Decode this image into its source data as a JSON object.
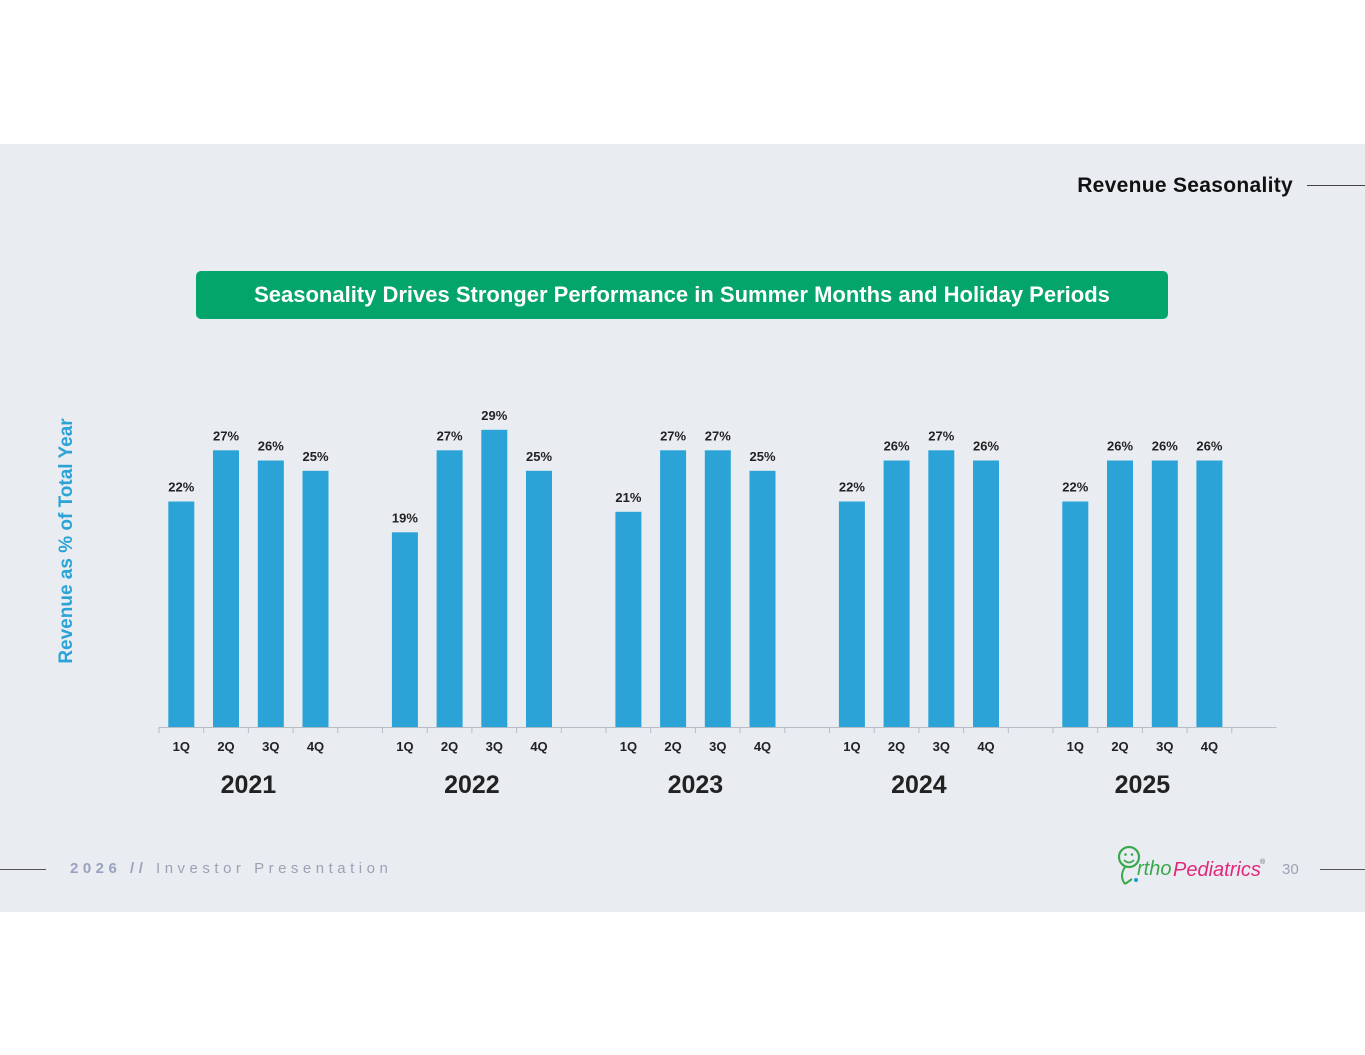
{
  "header": {
    "section_title": "Revenue Seasonality"
  },
  "banner": {
    "text": "Seasonality Drives Stronger Performance in Summer Months and Holiday Periods"
  },
  "colors": {
    "bar": "#2ba3d6",
    "banner": "#03a56a",
    "axis_title": "#2ba3d6",
    "background": "#e9edf2"
  },
  "chart_data": {
    "type": "bar",
    "ylabel": "Revenue as % of Total Year",
    "ylim": [
      0,
      30
    ],
    "grid": false,
    "legend": "none",
    "groups": [
      {
        "year": "2021",
        "quarters": [
          "1Q",
          "2Q",
          "3Q",
          "4Q"
        ],
        "values": [
          22,
          27,
          26,
          25
        ],
        "labels": [
          "22%",
          "27%",
          "26%",
          "25%"
        ]
      },
      {
        "year": "2022",
        "quarters": [
          "1Q",
          "2Q",
          "3Q",
          "4Q"
        ],
        "values": [
          19,
          27,
          29,
          25
        ],
        "labels": [
          "19%",
          "27%",
          "29%",
          "25%"
        ]
      },
      {
        "year": "2023",
        "quarters": [
          "1Q",
          "2Q",
          "3Q",
          "4Q"
        ],
        "values": [
          21,
          27,
          27,
          25
        ],
        "labels": [
          "21%",
          "27%",
          "27%",
          "25%"
        ]
      },
      {
        "year": "2024",
        "quarters": [
          "1Q",
          "2Q",
          "3Q",
          "4Q"
        ],
        "values": [
          22,
          26,
          27,
          26
        ],
        "labels": [
          "22%",
          "26%",
          "27%",
          "26%"
        ]
      },
      {
        "year": "2025",
        "quarters": [
          "1Q",
          "2Q",
          "3Q",
          "4Q"
        ],
        "values": [
          22,
          26,
          26,
          26
        ],
        "labels": [
          "22%",
          "26%",
          "26%",
          "26%"
        ]
      }
    ]
  },
  "footer": {
    "year": "2026 //",
    "title": "Investor Presentation",
    "page_number": "30"
  },
  "logo": {
    "text_o": "rtho",
    "text_p": "Pediatrics",
    "mark": "®"
  }
}
